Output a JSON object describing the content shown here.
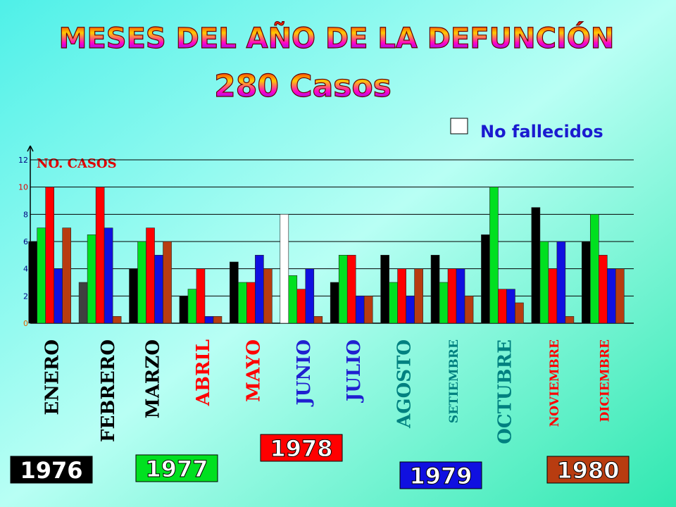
{
  "chart_data": {
    "type": "bar",
    "title": "MESES DEL AÑO DE LA DEFUNCIÓN",
    "subtitle": "280 Casos",
    "y_label": "NO. CASOS",
    "legend_note": {
      "label": "No fallecidos",
      "color": "#ffffff"
    },
    "categories": [
      "ENERO",
      "FEBRERO",
      "MARZO",
      "ABRIL",
      "MAYO",
      "JUNIO",
      "JULIO",
      "AGOSTO",
      "SETIEMBRE",
      "OCTUBRE",
      "NOVIEMBRE",
      "DICIEMBRE"
    ],
    "category_colors": [
      "#000000",
      "#000000",
      "#000000",
      "#ff0000",
      "#ff0000",
      "#2020d0",
      "#2020d0",
      "#008080",
      "#008080",
      "#008080",
      "#ff0000",
      "#ff0000"
    ],
    "series": [
      {
        "name": "1976",
        "color": "#000000",
        "point_colors": [
          "#000000",
          "#404040",
          "#000000",
          "#000000",
          "#000000",
          "#ffffff",
          "#000000",
          "#000000",
          "#000000",
          "#000000",
          "#000000",
          "#000000"
        ],
        "values": [
          6,
          3,
          4,
          2,
          4.5,
          8,
          3,
          5,
          5,
          6.5,
          8.5,
          6
        ]
      },
      {
        "name": "1977",
        "color": "#00e020",
        "values": [
          7,
          6.5,
          6,
          2.5,
          3,
          3.5,
          5,
          3,
          3,
          10,
          6,
          8
        ]
      },
      {
        "name": "1978",
        "color": "#ff0000",
        "values": [
          10,
          10,
          7,
          4,
          3,
          2.5,
          5,
          4,
          4,
          2.5,
          4,
          5
        ]
      },
      {
        "name": "1979",
        "color": "#1010e0",
        "values": [
          4,
          7,
          5,
          0.5,
          5,
          4,
          2,
          2,
          4,
          2.5,
          6,
          4
        ]
      },
      {
        "name": "1980",
        "color": "#b83c10",
        "values": [
          7,
          0.5,
          6,
          0.5,
          4,
          0.5,
          2,
          4,
          2,
          1.5,
          0.5,
          4
        ]
      }
    ],
    "ylim": [
      0,
      12
    ],
    "yticks": [
      0,
      2,
      4,
      6,
      8,
      10,
      12
    ],
    "grid": true
  }
}
